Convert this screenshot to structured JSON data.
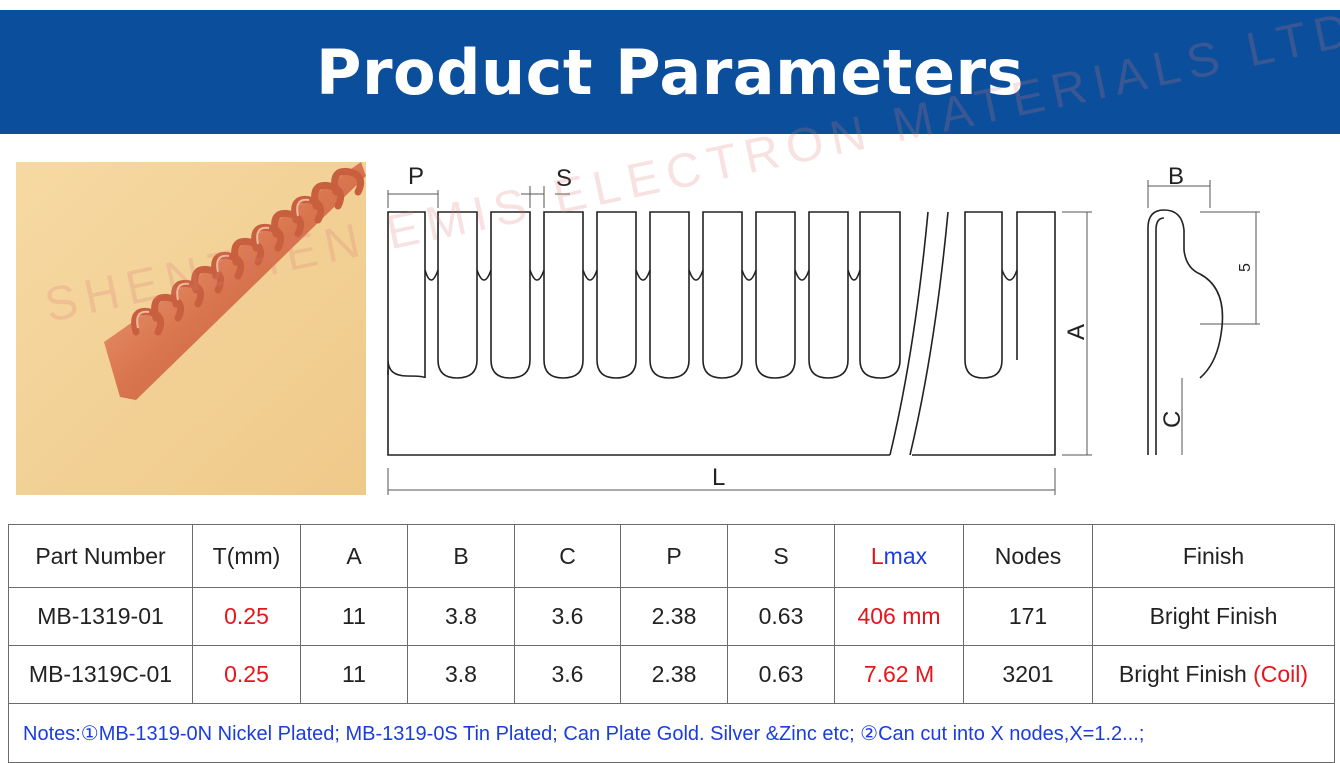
{
  "banner": {
    "title": "Product Parameters"
  },
  "drawing": {
    "labels": {
      "p": "P",
      "s": "S",
      "l": "L",
      "a": "A",
      "b": "B",
      "c": "C",
      "five": "5"
    }
  },
  "watermark": "SHENZHEN EMIS ELECTRON MATERIALS LTD. CO",
  "table": {
    "headers": {
      "part_number": "Part Number",
      "t": "T(mm)",
      "a": "A",
      "b": "B",
      "c": "C",
      "p": "P",
      "s": "S",
      "lmax_first": "L",
      "lmax_rest": "max",
      "nodes": "Nodes",
      "finish": "Finish"
    },
    "rows": [
      {
        "part": "MB-1319-01",
        "t": "0.25",
        "a": "11",
        "b": "3.8",
        "c": "3.6",
        "p": "2.38",
        "s": "0.63",
        "lmax": "406 mm",
        "nodes": "171",
        "finish": "Bright Finish",
        "finish_extra": ""
      },
      {
        "part": "MB-1319C-01",
        "t": "0.25",
        "a": "11",
        "b": "3.8",
        "c": "3.6",
        "p": "2.38",
        "s": "0.63",
        "lmax": "7.62 M",
        "nodes": "3201",
        "finish": "Bright Finish ",
        "finish_extra": "(Coil)"
      }
    ],
    "notes": "Notes:①MB-1319-0N Nickel Plated; MB-1319-0S Tin Plated; Can Plate Gold. Silver &Zinc etc; ②Can cut into X nodes,X=1.2...;"
  },
  "colors": {
    "banner": "#0b4f9c",
    "highlight_red": "#e8141c",
    "notes_blue": "#1a3ce0"
  }
}
